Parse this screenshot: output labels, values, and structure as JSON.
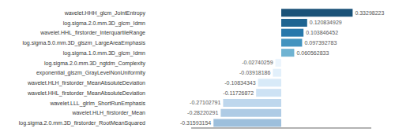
{
  "chart_data": {
    "type": "bar",
    "orientation": "horizontal",
    "categories": [
      "wavelet.HHH_glcm_JointEntropy",
      "log.sigma.2.0.mm.3D_glcm_Idmn",
      "wavelet.HHL_firstorder_InterquartileRange",
      "log.sigma.5.0.mm.3D_glszm_LargeAreaEmphasis",
      "log.sigma.1.0.mm.3D_glcm_Idmn",
      "log.sigma.2.0.mm.3D_ngtdm_Complexity",
      "exponential_glszm_GrayLevelNonUniformity",
      "wavelet.HLH_firstorder_MeanAbsoluteDeviation",
      "wavelet.HHL_firstorder_MeanAbsoluteDeviation",
      "wavelet.LLL_glrlm_ShortRunEmphasis",
      "wavelet.HLH_firstorder_Mean",
      "log.sigma.2.0.mm.3D_firstorder_RootMeanSquared"
    ],
    "values": [
      0.33298223,
      0.120834929,
      0.103846452,
      0.097392783,
      0.060562833,
      -0.02740259,
      -0.03918186,
      -0.10834343,
      -0.11726872,
      -0.27102791,
      -0.28220291,
      -0.31593154
    ],
    "colors": [
      "#1a5278",
      "#1e6491",
      "#2878ab",
      "#4293bf",
      "#6fb3d2",
      "#ecf5fd",
      "#e2f0fb",
      "#d8eaf8",
      "#cde2f4",
      "#bed7ed",
      "#aecbe5",
      "#9dbfdc"
    ],
    "xlim": [
      -0.42,
      0.42
    ],
    "data_labels": true,
    "tick_labels": "y",
    "grid": false
  }
}
